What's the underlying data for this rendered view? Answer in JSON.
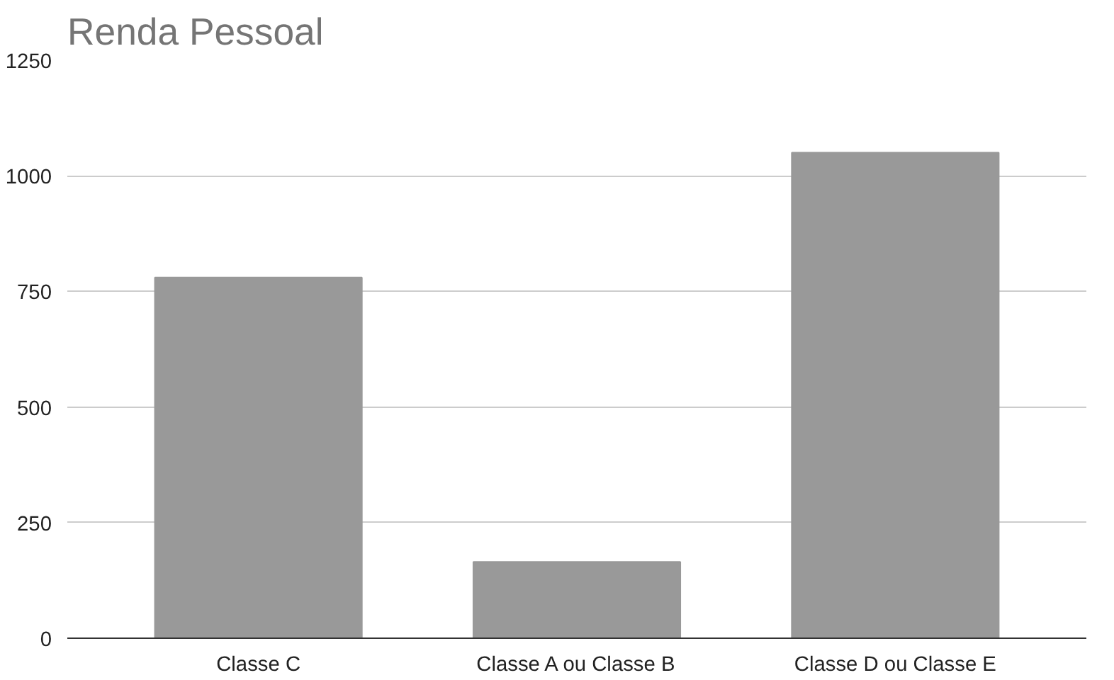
{
  "chart_data": {
    "type": "bar",
    "title": "Renda Pessoal",
    "categories": [
      "Classe C",
      "Classe A ou Classe B",
      "Classe D ou Classe E"
    ],
    "values": [
      780,
      165,
      1050
    ],
    "color": "#999999",
    "ylim": [
      0,
      1250
    ],
    "yticks": [
      0,
      250,
      500,
      750,
      1000,
      1250
    ],
    "grid": "y"
  }
}
